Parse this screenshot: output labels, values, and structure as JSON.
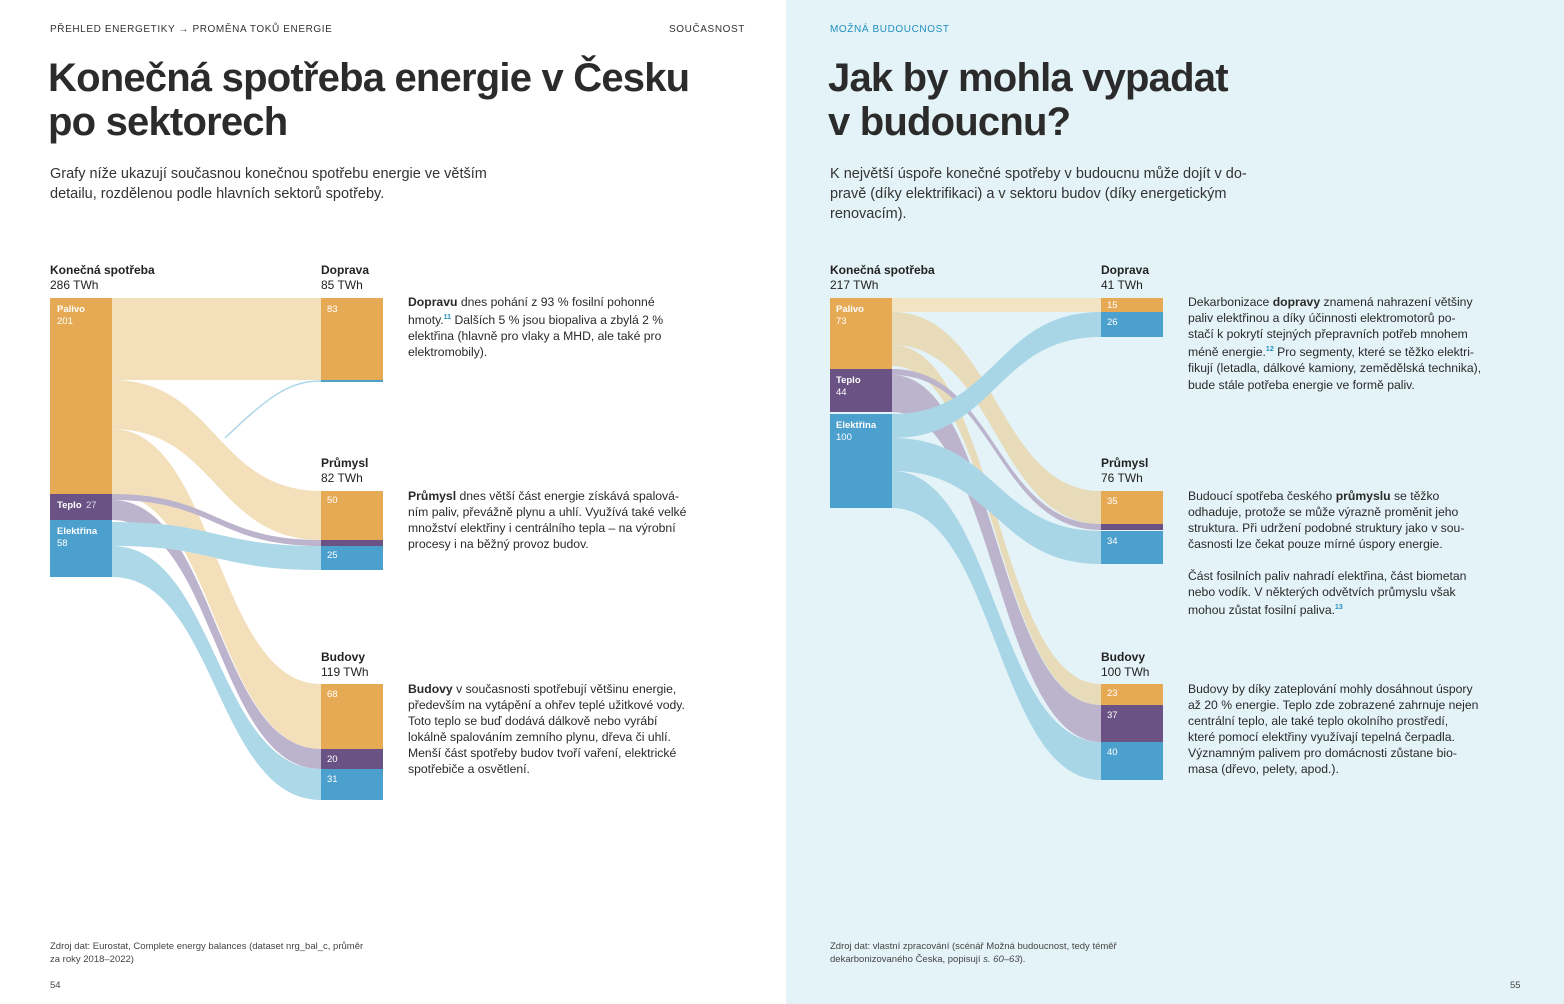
{
  "colors": {
    "palivo": "#e6aa55",
    "palivo_flow": "#f4dfbb",
    "teplo": "#6a5384",
    "teplo_flow": "#bcb4cc",
    "elektrina": "#4ca0cd",
    "elektrina_flow": "#add8e8",
    "right_bg": "#e4f3f8"
  },
  "left": {
    "kicker": "PŘEHLED ENERGETIKY → PROMĚNA TOKŮ ENERGIE",
    "kicker_right": "SOUČASNOST",
    "title_line1": "Konečná spotřeba energie v Česku",
    "title_line2": "po sektorech",
    "lead_line1": "Grafy níže ukazují současnou konečnou spotřebu energie ve větším",
    "lead_line2": "detailu, rozdělenou podle hlavních sektorů spotřeby.",
    "source_line1": "Zdroj dat: Eurostat, Complete energy balances (dataset nrg_bal_c, průměr",
    "source_line2": "za roky 2018–2022)",
    "page_number": "54",
    "total": {
      "name": "Konečná spotřeba",
      "value": "286 TWh"
    },
    "sources": [
      {
        "name": "Palivo",
        "value": "201"
      },
      {
        "name": "Teplo",
        "value": "27"
      },
      {
        "name": "Elektřina",
        "value": "58"
      }
    ],
    "sectors": [
      {
        "name": "Doprava",
        "value": "85 TWh",
        "parts": [
          "83",
          "",
          ""
        ]
      },
      {
        "name": "Průmysl",
        "value": "82 TWh",
        "parts": [
          "50",
          "",
          "25"
        ]
      },
      {
        "name": "Budovy",
        "value": "119 TWh",
        "parts": [
          "68",
          "20",
          "31"
        ]
      }
    ],
    "desc_doprava": {
      "bold": "Dopravu",
      "t1": " dnes pohání z 93 % fosilní pohonné",
      "t2": "hmoty.",
      "sup": "11",
      "t3": " Dalších 5 % jsou biopaliva a zbylá 2 %",
      "t4": "elektřina (hlavně pro vlaky a MHD, ale také pro",
      "t5": "elektromobily)."
    },
    "desc_prumysl": {
      "bold": "Průmysl",
      "t1": " dnes větší část energie získává spalová-",
      "t2": "ním paliv, převážně plynu a uhlí. Využívá také velké",
      "t3": "množství elektřiny i centrálního tepla – na výrobní",
      "t4": "procesy i na běžný provoz budov."
    },
    "desc_budovy": {
      "bold": "Budovy",
      "t1": " v současnosti spotřebují většinu energie,",
      "t2": "především na vytápění a ohřev teplé užitkové vody.",
      "t3": "Toto teplo se buď dodává dálkově nebo vyrábí",
      "t4": "lokálně spalováním zemního plynu, dřeva či uhlí.",
      "t5": "Menší část spotřeby budov tvoří vaření, elektrické",
      "t6": "spotřebiče a osvětlení."
    }
  },
  "right": {
    "kicker": "MOŽNÁ BUDOUCNOST",
    "title_line1": "Jak by mohla vypadat",
    "title_line2": "v budoucnu?",
    "lead_line1": "K největší úspoře konečné spotřeby v budoucnu může dojít v do-",
    "lead_line2": "pravě (díky elektrifikaci) a v sektoru budov (díky energetickým",
    "lead_line3": "renovacím).",
    "source_line1": "Zdroj dat: vlastní zpracování (scénář Možná budoucnost, tedy téměř",
    "source_line2": "dekarbonizovaného Česka, popisují ",
    "source_ref": "s. 60–63",
    "source_end": ").",
    "page_number": "55",
    "total": {
      "name": "Konečná spotřeba",
      "value": "217 TWh"
    },
    "sources": [
      {
        "name": "Palivo",
        "value": "73"
      },
      {
        "name": "Teplo",
        "value": "44"
      },
      {
        "name": "Elektřina",
        "value": "100"
      }
    ],
    "sectors": [
      {
        "name": "Doprava",
        "value": "41 TWh",
        "parts": [
          "15",
          "",
          "26"
        ]
      },
      {
        "name": "Průmysl",
        "value": "76 TWh",
        "parts": [
          "35",
          "",
          "34"
        ]
      },
      {
        "name": "Budovy",
        "value": "100 TWh",
        "parts": [
          "23",
          "37",
          "40"
        ]
      }
    ],
    "desc_doprava": {
      "t0": "Dekarbonizace ",
      "bold": "dopravy",
      "t1": " znamená nahrazení většiny",
      "t2": "paliv elektřinou a díky účinnosti elektromotorů po-",
      "t3": "stačí k pokrytí stejných přepravních potřeb mnohem",
      "t4": "méně energie.",
      "sup": "12",
      "t5": " Pro segmenty, které se těžko elektri-",
      "t6": "fikují (letadla, dálkové kamiony, zemědělská technika),",
      "t7": "bude stále potřeba energie ve formě paliv."
    },
    "desc_prumysl": {
      "t0": "Budoucí spotřeba českého ",
      "bold": "průmyslu",
      "t1": " se těžko",
      "t2": "odhaduje, protože se může výrazně proměnit jeho",
      "t3": "struktura. Při udržení podobné struktury jako v sou-",
      "t4": "časnosti lze čekat pouze mírné úspory energie."
    },
    "desc_prumysl2": {
      "t1": "Část fosilních paliv nahradí elektřina, část biometan",
      "t2": "nebo vodík. V některých odvětvích průmyslu však",
      "t3": "mohou zůstat fosilní paliva.",
      "sup": "13"
    },
    "desc_budovy": {
      "t1": "Budovy by díky zateplování mohly dosáhnout úspory",
      "t2": "až 20 % energie. Teplo zde zobrazené zahrnuje nejen",
      "t3": "centrální teplo, ale také teplo okolního prostředí,",
      "t4": "které pomocí elektřiny využívají tepelná čerpadla.",
      "t5": "Významným palivem pro domácnosti zůstane bio-",
      "t6": "masa (dřevo, pelety, apod.)."
    }
  }
}
